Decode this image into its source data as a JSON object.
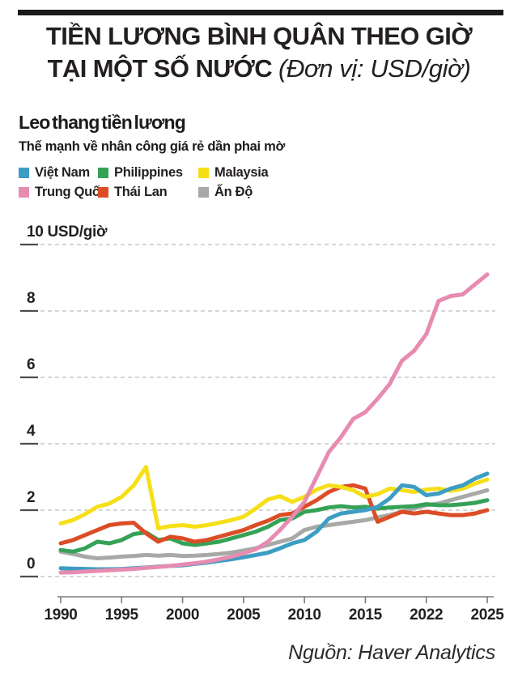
{
  "header": {
    "title_line1": "TIỀN LƯƠNG BÌNH QUÂN THEO GIỜ",
    "title_line2_main": "TẠI MỘT SỐ NƯỚC",
    "title_line2_unit": "(Đơn vị: USD/giờ)"
  },
  "chart_data": {
    "type": "line",
    "title": "Leo thang tiền lương",
    "subtitle": "Thế mạnh về nhân công giá rẻ dần phai mờ",
    "x": [
      1990,
      1991,
      1992,
      1993,
      1994,
      1995,
      1996,
      1997,
      1998,
      1999,
      2000,
      2001,
      2002,
      2003,
      2004,
      2005,
      2006,
      2007,
      2008,
      2009,
      2010,
      2011,
      2012,
      2013,
      2014,
      2015,
      2016,
      2017,
      2018,
      2019,
      2020,
      2021,
      2022,
      2023,
      2024,
      2025
    ],
    "x_tick_labels": [
      "1990",
      "1995",
      "2000",
      "2005",
      "2010",
      "2015",
      "2022",
      "2025"
    ],
    "ylim": [
      0,
      10
    ],
    "y_ticks": [
      {
        "value": 0,
        "label": "0"
      },
      {
        "value": 2,
        "label": "2"
      },
      {
        "value": 4,
        "label": "4"
      },
      {
        "value": 6,
        "label": "6"
      },
      {
        "value": 8,
        "label": "8"
      },
      {
        "value": 10,
        "label": "10 USD/giờ"
      }
    ],
    "grid": "dashed-horizontal",
    "legend_position": "top-left",
    "series": [
      {
        "name": "Việt Nam",
        "color": "#3d9dc3",
        "values": [
          0.25,
          0.24,
          0.23,
          0.22,
          0.22,
          0.23,
          0.25,
          0.27,
          0.3,
          0.32,
          0.34,
          0.38,
          0.42,
          0.47,
          0.52,
          0.58,
          0.65,
          0.72,
          0.85,
          1.0,
          1.1,
          1.35,
          1.75,
          1.9,
          1.95,
          2.0,
          2.1,
          2.35,
          2.75,
          2.7,
          2.45,
          2.5,
          2.65,
          2.75,
          2.95,
          3.1
        ]
      },
      {
        "name": "Philippines",
        "color": "#35a257",
        "values": [
          0.8,
          0.75,
          0.85,
          1.05,
          1.0,
          1.1,
          1.28,
          1.33,
          1.1,
          1.15,
          1.0,
          0.95,
          1.0,
          1.05,
          1.15,
          1.25,
          1.35,
          1.5,
          1.7,
          1.75,
          1.95,
          2.0,
          2.08,
          2.12,
          2.08,
          2.1,
          2.05,
          2.08,
          2.1,
          2.12,
          2.18,
          2.15,
          2.15,
          2.18,
          2.22,
          2.3
        ]
      },
      {
        "name": "Malaysia",
        "color": "#f6df17",
        "values": [
          1.6,
          1.7,
          1.88,
          2.1,
          2.2,
          2.4,
          2.75,
          3.3,
          1.45,
          1.52,
          1.55,
          1.5,
          1.55,
          1.62,
          1.7,
          1.8,
          2.05,
          2.32,
          2.42,
          2.25,
          2.4,
          2.62,
          2.75,
          2.7,
          2.6,
          2.4,
          2.48,
          2.65,
          2.6,
          2.55,
          2.62,
          2.65,
          2.58,
          2.65,
          2.8,
          2.92
        ]
      },
      {
        "name": "Trung Quốc",
        "color": "#e78bb1",
        "values": [
          0.12,
          0.13,
          0.15,
          0.17,
          0.19,
          0.21,
          0.23,
          0.26,
          0.29,
          0.32,
          0.36,
          0.4,
          0.45,
          0.52,
          0.6,
          0.7,
          0.82,
          1.05,
          1.4,
          1.8,
          2.25,
          3.0,
          3.75,
          4.2,
          4.75,
          4.95,
          5.35,
          5.8,
          6.5,
          6.8,
          7.3,
          8.3,
          8.45,
          8.5,
          8.8,
          9.1
        ]
      },
      {
        "name": "Thái Lan",
        "color": "#dc4d26",
        "values": [
          1.0,
          1.1,
          1.25,
          1.4,
          1.55,
          1.6,
          1.62,
          1.3,
          1.05,
          1.2,
          1.15,
          1.05,
          1.1,
          1.2,
          1.3,
          1.4,
          1.55,
          1.68,
          1.85,
          1.9,
          2.1,
          2.3,
          2.55,
          2.7,
          2.75,
          2.65,
          1.65,
          1.8,
          1.95,
          1.9,
          1.95,
          1.9,
          1.85,
          1.85,
          1.9,
          2.0
        ]
      },
      {
        "name": "Ấn Độ",
        "color": "#a6a9a6",
        "values": [
          0.75,
          0.68,
          0.6,
          0.55,
          0.57,
          0.6,
          0.62,
          0.65,
          0.63,
          0.65,
          0.62,
          0.63,
          0.65,
          0.68,
          0.72,
          0.78,
          0.85,
          0.95,
          1.05,
          1.15,
          1.4,
          1.5,
          1.55,
          1.6,
          1.65,
          1.7,
          1.78,
          1.85,
          1.95,
          2.05,
          2.15,
          2.2,
          2.3,
          2.4,
          2.5,
          2.6
        ]
      }
    ],
    "source": "Nguồn: Haver Analytics"
  }
}
